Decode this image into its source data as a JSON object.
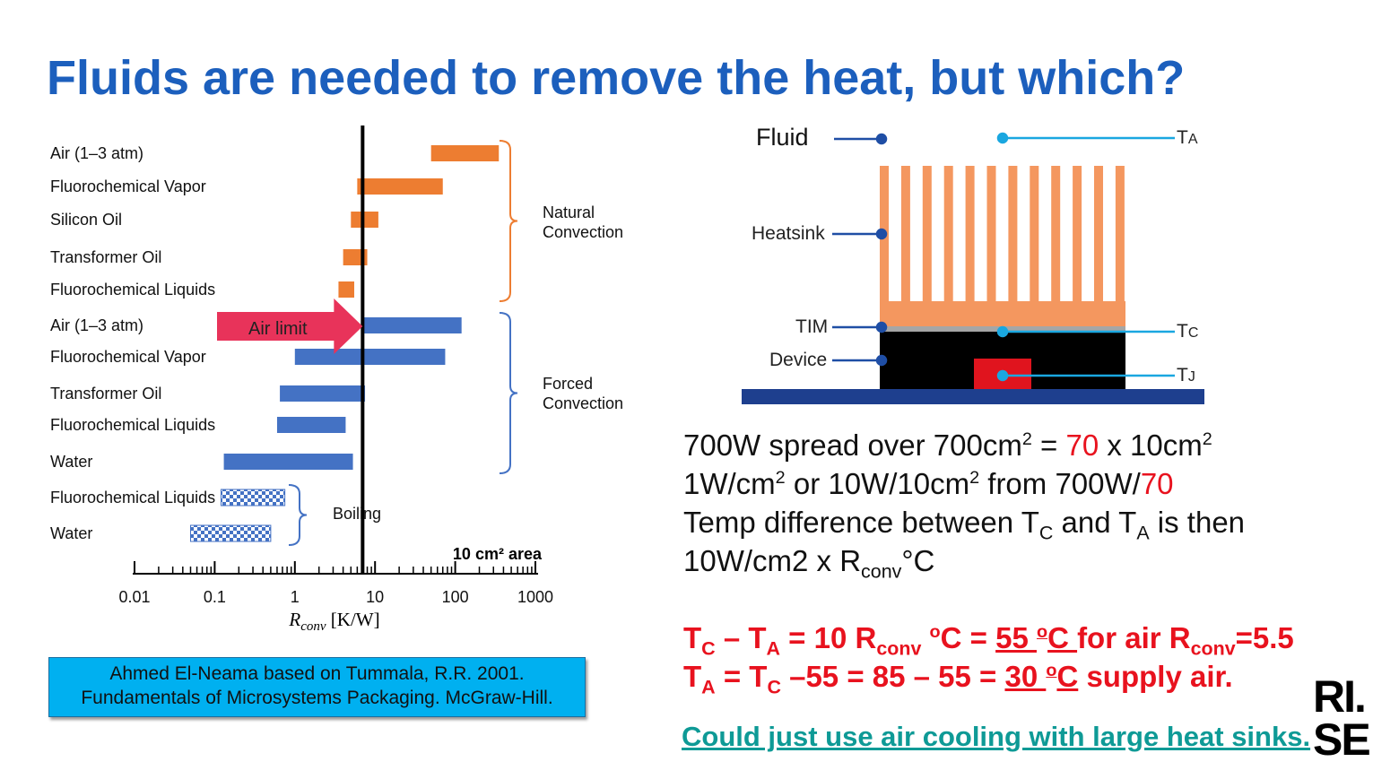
{
  "title": "Fluids are needed to remove the heat, but which?",
  "chart_data": {
    "type": "range-bar",
    "series": [
      {
        "name": "Natural Convection",
        "color": "#ed7d31",
        "categories": [
          "Air (1–3 atm)",
          "Fluorochemical Vapor",
          "Silicon Oil",
          "Transformer Oil",
          "Fluorochemical Liquids"
        ],
        "values": [
          [
            50,
            350
          ],
          [
            6,
            70
          ],
          [
            5,
            11
          ],
          [
            4,
            8
          ],
          [
            3.5,
            5.5
          ]
        ]
      },
      {
        "name": "Forced Convection",
        "color": "#4472c4",
        "categories": [
          "Air (1–3 atm)",
          "Fluorochemical Vapor",
          "Transformer Oil",
          "Fluorochemical Liquids",
          "Water"
        ],
        "values": [
          [
            7,
            120
          ],
          [
            1,
            75
          ],
          [
            0.65,
            7.5
          ],
          [
            0.6,
            4.3
          ],
          [
            0.13,
            5.3
          ]
        ]
      },
      {
        "name": "Boiling",
        "color": "#4472c4",
        "pattern": "checker",
        "categories": [
          "Fluorochemical Liquids",
          "Water"
        ],
        "values": [
          [
            0.12,
            0.75
          ],
          [
            0.05,
            0.5
          ]
        ]
      }
    ],
    "xlim": [
      0.01,
      1000
    ],
    "log_x": true,
    "xticks": [
      0.01,
      0.1,
      1,
      10,
      100,
      1000
    ],
    "xlabel": {
      "symbol": "R",
      "subscript": "conv",
      "unit": " [K/W]"
    },
    "annotation": "10 cm² area",
    "air_limit": {
      "label": "Air limit",
      "value": 7
    }
  },
  "citation": [
    "Ahmed El-Neama based on  Tummala, R.R. 2001.",
    "Fundamentals of Microsystems Packaging. McGraw-Hill."
  ],
  "diagram": {
    "fluid": "Fluid",
    "ta": [
      "T",
      "A"
    ],
    "heatsink": "Heatsink",
    "tim": "TIM",
    "device": "Device",
    "tc": [
      "T",
      "C"
    ],
    "tj": [
      "T",
      "J"
    ]
  },
  "text": [
    [
      "700W spread over 700cm",
      "2",
      " = ",
      "70",
      " x 10cm",
      "2"
    ],
    [
      "1W/cm",
      "2",
      " or 10W/10cm",
      "2",
      " from 700W/",
      "70"
    ],
    [
      "Temp difference between T",
      "C",
      " and T",
      "A",
      " is then"
    ],
    [
      "10W/cm2 x R",
      "conv",
      "°C"
    ]
  ],
  "result": [
    [
      "T",
      "C",
      " – T",
      "A",
      " = 10 R",
      "conv",
      " ",
      "o",
      "C = ",
      "55 ",
      "o",
      "C ",
      "for air R",
      "conv",
      "=5.5"
    ],
    [
      "T",
      "A",
      " = T",
      "C",
      " –55 = 85 – 55 = ",
      "30 ",
      "o",
      "C",
      " supply air."
    ]
  ],
  "link": "Could just use air cooling with large heat sinks.",
  "logo": [
    "RI.",
    "SE"
  ]
}
